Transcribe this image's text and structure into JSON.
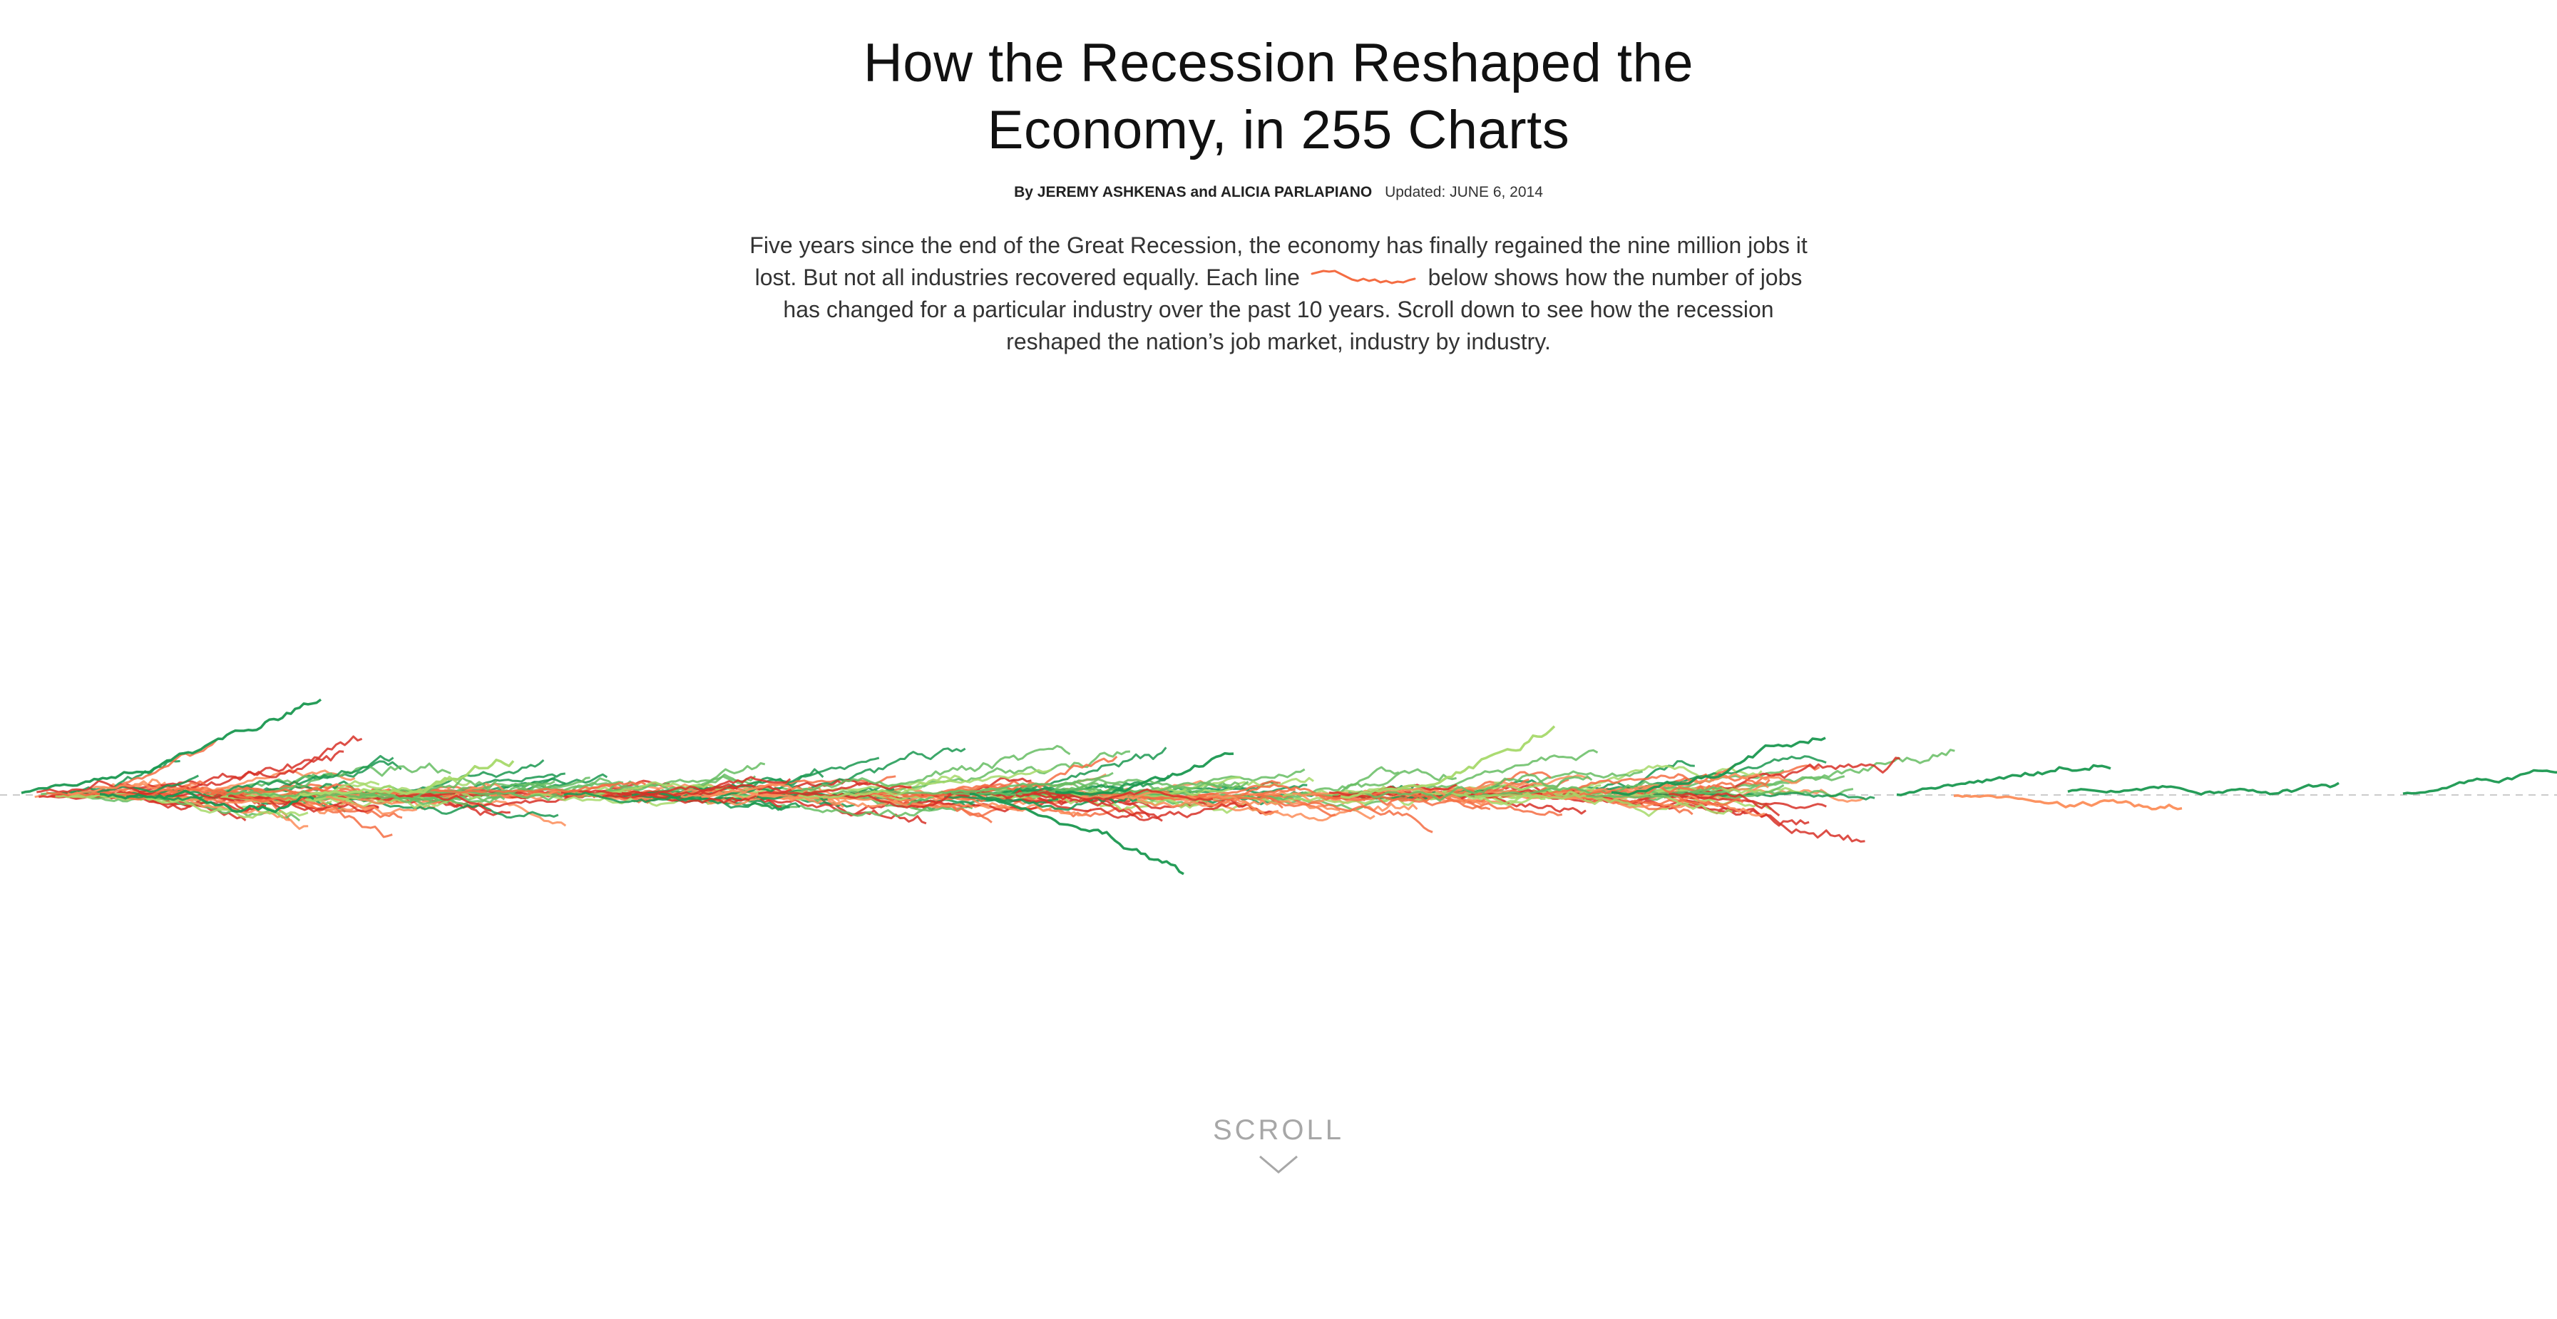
{
  "header": {
    "title_line1": "How the Recession Reshaped the",
    "title_line2": "Economy, in 255 Charts",
    "byline": "By JEREMY ASHKENAS and ALICIA PARLAPIANO",
    "updated": "Updated: JUNE 6, 2014"
  },
  "intro": {
    "before_line": "Five years since the end of the Great Recession, the economy has finally regained the nine million jobs it lost. But not all industries recovered equally. Each line",
    "after_line": "below shows how the number of jobs has changed for a particular industry over the past 10 years. Scroll down to see how the recession reshaped the nation’s job market, industry by  industry."
  },
  "scroll": {
    "label": "SCROLL",
    "icon": "chevron-down-icon"
  },
  "colors": {
    "decline_red": "#d73027",
    "decline_orange": "#f46d43",
    "mild_orange": "#fc8d59",
    "light_green": "#a6d96a",
    "mid_green": "#66bd63",
    "strong_green": "#1a9850",
    "baseline": "#cccccc"
  },
  "chart_data": {
    "type": "line",
    "series_count": 255,
    "baseline": "dashed horizontal reference line",
    "legend": "none",
    "grid": false
  }
}
